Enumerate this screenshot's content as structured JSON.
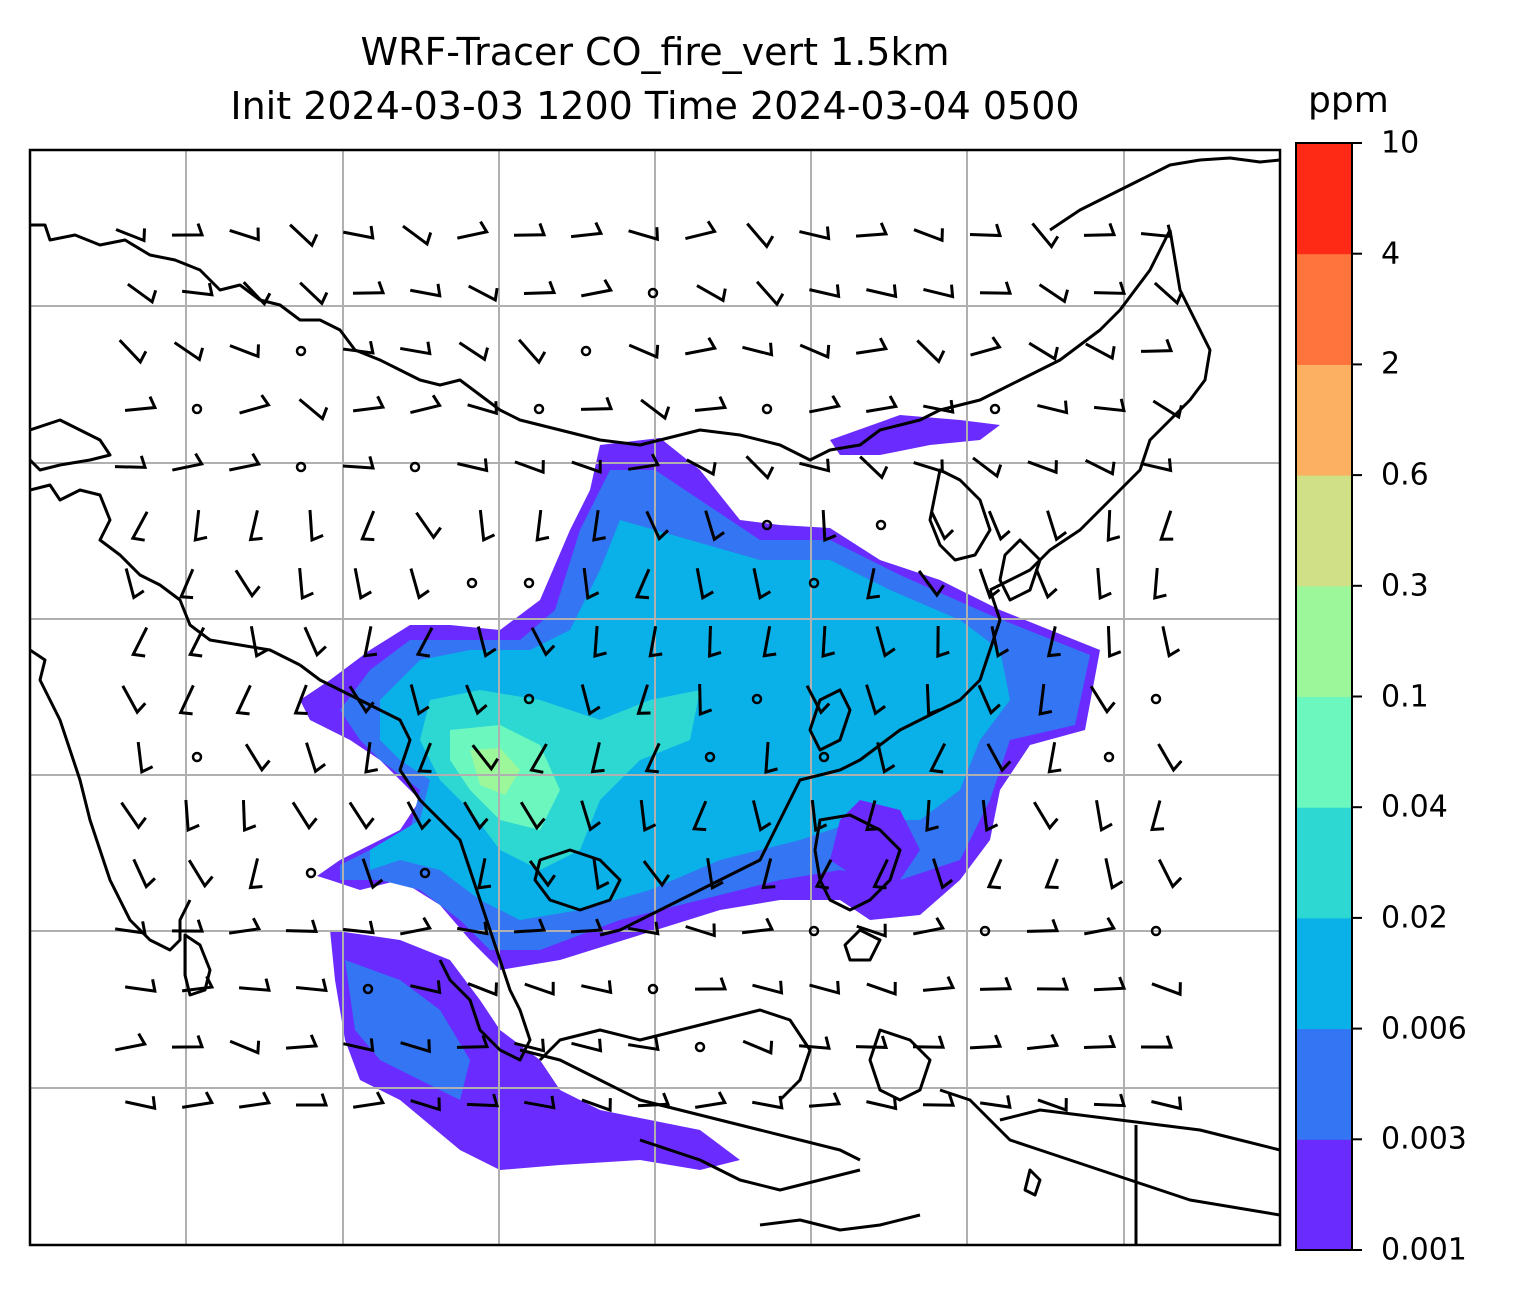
{
  "title": {
    "line1": "WRF-Tracer CO_fire_vert 1.5km",
    "line2": "Init 2024-03-03 1200 Time 2024-03-04 0500"
  },
  "colorbar": {
    "unit": "ppm",
    "levels": [
      "0.001",
      "0.003",
      "0.006",
      "0.02",
      "0.04",
      "0.1",
      "0.3",
      "0.6",
      "2",
      "4",
      "10"
    ],
    "colors": [
      "#6a2bff",
      "#3375f2",
      "#0ab0e8",
      "#2ed8d2",
      "#6cf7be",
      "#9cf79a",
      "#d0e087",
      "#fbb062",
      "#ff733c",
      "#ff2a16"
    ]
  },
  "map": {
    "gridlines": true,
    "coastline_color": "#000000",
    "barb_color": "#000000"
  }
}
